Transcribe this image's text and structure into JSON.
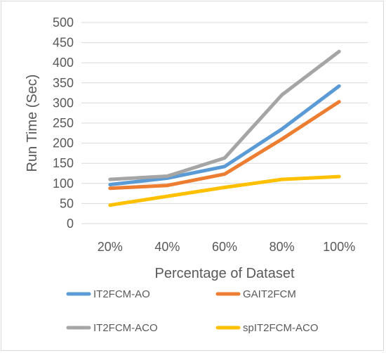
{
  "chart_data": {
    "type": "line",
    "title": "",
    "xlabel": "Percentage of Dataset",
    "ylabel": "Run Time (Sec)",
    "categories": [
      "20%",
      "40%",
      "60%",
      "80%",
      "100%"
    ],
    "ylim": [
      0,
      500
    ],
    "yticks": [
      0,
      50,
      100,
      150,
      200,
      250,
      300,
      350,
      400,
      450,
      500
    ],
    "grid": true,
    "legend_position": "bottom",
    "series": [
      {
        "name": "IT2FCM-AO",
        "color": "#5b9bd5",
        "values": [
          97,
          113,
          142,
          235,
          342
        ]
      },
      {
        "name": "GAIT2FCM",
        "color": "#ed7d31",
        "values": [
          88,
          95,
          123,
          210,
          303
        ]
      },
      {
        "name": "IT2FCM-ACO",
        "color": "#a5a5a5",
        "values": [
          110,
          118,
          163,
          320,
          428
        ]
      },
      {
        "name": "spIT2FCM-ACO",
        "color": "#ffc000",
        "values": [
          46,
          68,
          90,
          110,
          117
        ]
      }
    ]
  }
}
